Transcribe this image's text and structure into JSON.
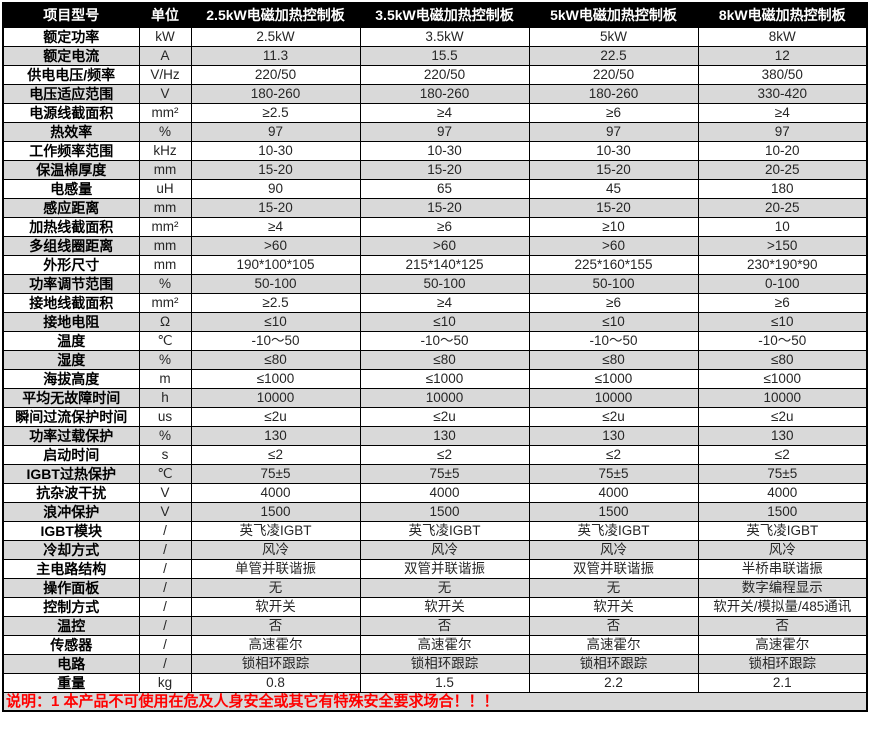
{
  "colors": {
    "header_bg": "#000000",
    "header_text": "#ffffff",
    "stripe_bg": "#d9d9d9",
    "note_text": "#ff0000",
    "border": "#000000",
    "value_text": "#262626"
  },
  "table": {
    "header": {
      "columns": [
        "项目型号",
        "单位",
        "2.5kW电磁加热控制板",
        "3.5kW电磁加热控制板",
        "5kW电磁加热控制板",
        "8kW电磁加热控制板"
      ]
    },
    "rows": [
      {
        "label": "额定功率",
        "unit": "kW",
        "values": [
          "2.5kW",
          "3.5kW",
          "5kW",
          "8kW"
        ]
      },
      {
        "label": "额定电流",
        "unit": "A",
        "values": [
          "11.3",
          "15.5",
          "22.5",
          "12"
        ]
      },
      {
        "label": "供电电压/频率",
        "unit": "V/Hz",
        "values": [
          "220/50",
          "220/50",
          "220/50",
          "380/50"
        ]
      },
      {
        "label": "电压适应范围",
        "unit": "V",
        "values": [
          "180-260",
          "180-260",
          "180-260",
          "330-420"
        ]
      },
      {
        "label": "电源线截面积",
        "unit": "mm²",
        "values": [
          "≥2.5",
          "≥4",
          "≥6",
          "≥4"
        ]
      },
      {
        "label": "热效率",
        "unit": "%",
        "values": [
          "97",
          "97",
          "97",
          "97"
        ]
      },
      {
        "label": "工作频率范围",
        "unit": "kHz",
        "values": [
          "10-30",
          "10-30",
          "10-30",
          "10-20"
        ]
      },
      {
        "label": "保温棉厚度",
        "unit": "mm",
        "values": [
          "15-20",
          "15-20",
          "15-20",
          "20-25"
        ]
      },
      {
        "label": "电感量",
        "unit": "uH",
        "values": [
          "90",
          "65",
          "45",
          "180"
        ]
      },
      {
        "label": "感应距离",
        "unit": "mm",
        "values": [
          "15-20",
          "15-20",
          "15-20",
          "20-25"
        ]
      },
      {
        "label": "加热线截面积",
        "unit": "mm²",
        "values": [
          "≥4",
          "≥6",
          "≥10",
          "10"
        ]
      },
      {
        "label": "多组线圈距离",
        "unit": "mm",
        "values": [
          ">60",
          ">60",
          ">60",
          ">150"
        ]
      },
      {
        "label": "外形尺寸",
        "unit": "mm",
        "values": [
          "190*100*105",
          "215*140*125",
          "225*160*155",
          "230*190*90"
        ]
      },
      {
        "label": "功率调节范围",
        "unit": "%",
        "values": [
          "50-100",
          "50-100",
          "50-100",
          "0-100"
        ]
      },
      {
        "label": "接地线截面积",
        "unit": "mm²",
        "values": [
          "≥2.5",
          "≥4",
          "≥6",
          "≥6"
        ]
      },
      {
        "label": "接地电阻",
        "unit": "Ω",
        "values": [
          "≤10",
          "≤10",
          "≤10",
          "≤10"
        ]
      },
      {
        "label": "温度",
        "unit": "℃",
        "values": [
          "-10～50",
          "-10～50",
          "-10～50",
          "-10～50"
        ]
      },
      {
        "label": "湿度",
        "unit": "%",
        "values": [
          "≤80",
          "≤80",
          "≤80",
          "≤80"
        ]
      },
      {
        "label": "海拔高度",
        "unit": "m",
        "values": [
          "≤1000",
          "≤1000",
          "≤1000",
          "≤1000"
        ]
      },
      {
        "label": "平均无故障时间",
        "unit": "h",
        "values": [
          "10000",
          "10000",
          "10000",
          "10000"
        ]
      },
      {
        "label": "瞬间过流保护时间",
        "unit": "us",
        "values": [
          "≤2u",
          "≤2u",
          "≤2u",
          "≤2u"
        ]
      },
      {
        "label": "功率过载保护",
        "unit": "%",
        "values": [
          "130",
          "130",
          "130",
          "130"
        ]
      },
      {
        "label": "启动时间",
        "unit": "s",
        "values": [
          "≤2",
          "≤2",
          "≤2",
          "≤2"
        ]
      },
      {
        "label": "IGBT过热保护",
        "unit": "℃",
        "values": [
          "75±5",
          "75±5",
          "75±5",
          "75±5"
        ]
      },
      {
        "label": "抗杂波干扰",
        "unit": "V",
        "values": [
          "4000",
          "4000",
          "4000",
          "4000"
        ]
      },
      {
        "label": "浪冲保护",
        "unit": "V",
        "values": [
          "1500",
          "1500",
          "1500",
          "1500"
        ]
      },
      {
        "label": "IGBT模块",
        "unit": "/",
        "values": [
          "英飞凌IGBT",
          "英飞凌IGBT",
          "英飞凌IGBT",
          "英飞凌IGBT"
        ]
      },
      {
        "label": "冷却方式",
        "unit": "/",
        "values": [
          "风冷",
          "风冷",
          "风冷",
          "风冷"
        ]
      },
      {
        "label": "主电路结构",
        "unit": "/",
        "values": [
          "单管并联谐振",
          "双管并联谐振",
          "双管并联谐振",
          "半桥串联谐振"
        ]
      },
      {
        "label": "操作面板",
        "unit": "/",
        "values": [
          "无",
          "无",
          "无",
          "数字编程显示"
        ]
      },
      {
        "label": "控制方式",
        "unit": "/",
        "values": [
          "软开关",
          "软开关",
          "软开关",
          "软开关/模拟量/485通讯"
        ]
      },
      {
        "label": "温控",
        "unit": "/",
        "values": [
          "否",
          "否",
          "否",
          "否"
        ]
      },
      {
        "label": "传感器",
        "unit": "/",
        "values": [
          "高速霍尔",
          "高速霍尔",
          "高速霍尔",
          "高速霍尔"
        ]
      },
      {
        "label": "电路",
        "unit": "/",
        "values": [
          "锁相环跟踪",
          "锁相环跟踪",
          "锁相环跟踪",
          "锁相环跟踪"
        ]
      },
      {
        "label": "重量",
        "unit": "kg",
        "values": [
          "0.8",
          "1.5",
          "2.2",
          "2.1"
        ]
      }
    ],
    "footer_note": "说明：1 本产品不可使用在危及人身安全或其它有特殊安全要求场合！！！"
  }
}
